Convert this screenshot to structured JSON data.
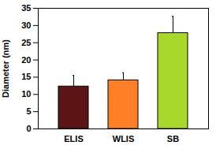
{
  "chart_data": {
    "type": "bar",
    "y_label": "Diameter (nm)",
    "categories": [
      "ELIS",
      "WLIS",
      "SB"
    ],
    "values": [
      12.3,
      14.1,
      27.8
    ],
    "errors": [
      3.2,
      2.2,
      4.9
    ],
    "colors": [
      "#5c1414",
      "#ff7f27",
      "#a8d82a"
    ],
    "ylim": [
      0,
      35
    ],
    "yticks": [
      0,
      5,
      10,
      15,
      20,
      25,
      30,
      35
    ],
    "grid": false
  }
}
